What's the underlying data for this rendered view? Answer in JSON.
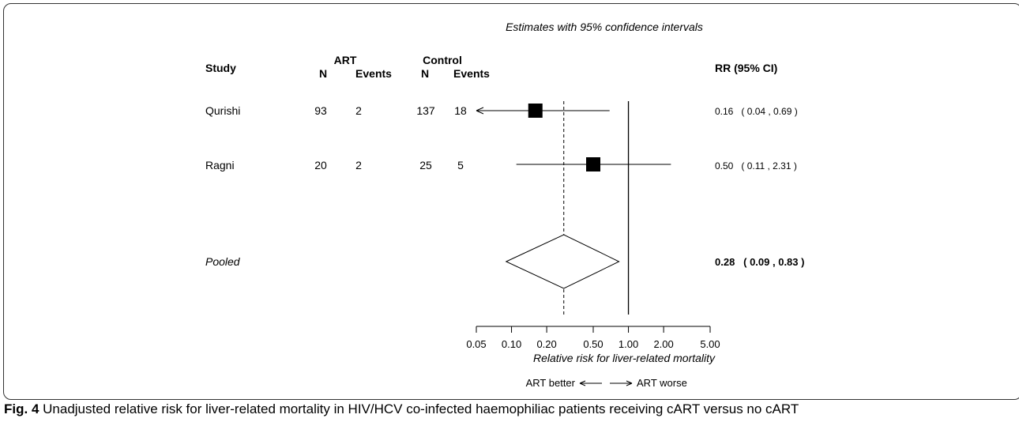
{
  "figure": {
    "caption_label": "Fig. 4",
    "caption_text": " Unadjusted relative risk for liver-related mortality in HIV/HCV co-infected haemophiliac patients receiving cART versus no cART"
  },
  "chart_data": {
    "type": "forest",
    "title": "Estimates with 95% confidence intervals",
    "columns": {
      "study": "Study",
      "art_group": "ART",
      "control_group": "Control",
      "n": "N",
      "events": "Events",
      "rr": "RR (95% CI)"
    },
    "studies": [
      {
        "name": "Qurishi",
        "art_n": "93",
        "art_events": "2",
        "ctrl_n": "137",
        "ctrl_events": "18",
        "rr": 0.16,
        "lower": 0.04,
        "upper": 0.69,
        "label": "0.16   ( 0.04 , 0.69 )",
        "lower_clipped": true
      },
      {
        "name": "Ragni",
        "art_n": "20",
        "art_events": "2",
        "ctrl_n": "25",
        "ctrl_events": "5",
        "rr": 0.5,
        "lower": 0.11,
        "upper": 2.31,
        "label": "0.50   ( 0.11 , 2.31 )",
        "lower_clipped": false
      }
    ],
    "pooled": {
      "name": "Pooled",
      "rr": 0.28,
      "lower": 0.09,
      "upper": 0.83,
      "label": "0.28   ( 0.09 , 0.83 )"
    },
    "x_scale": "log",
    "xlim": [
      0.05,
      5.0
    ],
    "xticks": [
      0.05,
      0.1,
      0.2,
      0.5,
      1.0,
      2.0,
      5.0
    ],
    "xtick_labels": [
      "0.05",
      "0.10",
      "0.20",
      "0.50",
      "1.00",
      "2.00",
      "5.00"
    ],
    "null_line": 1.0,
    "xlabel": "Relative risk for liver-related mortality",
    "direction": {
      "left": "ART better",
      "right": "ART worse"
    }
  }
}
